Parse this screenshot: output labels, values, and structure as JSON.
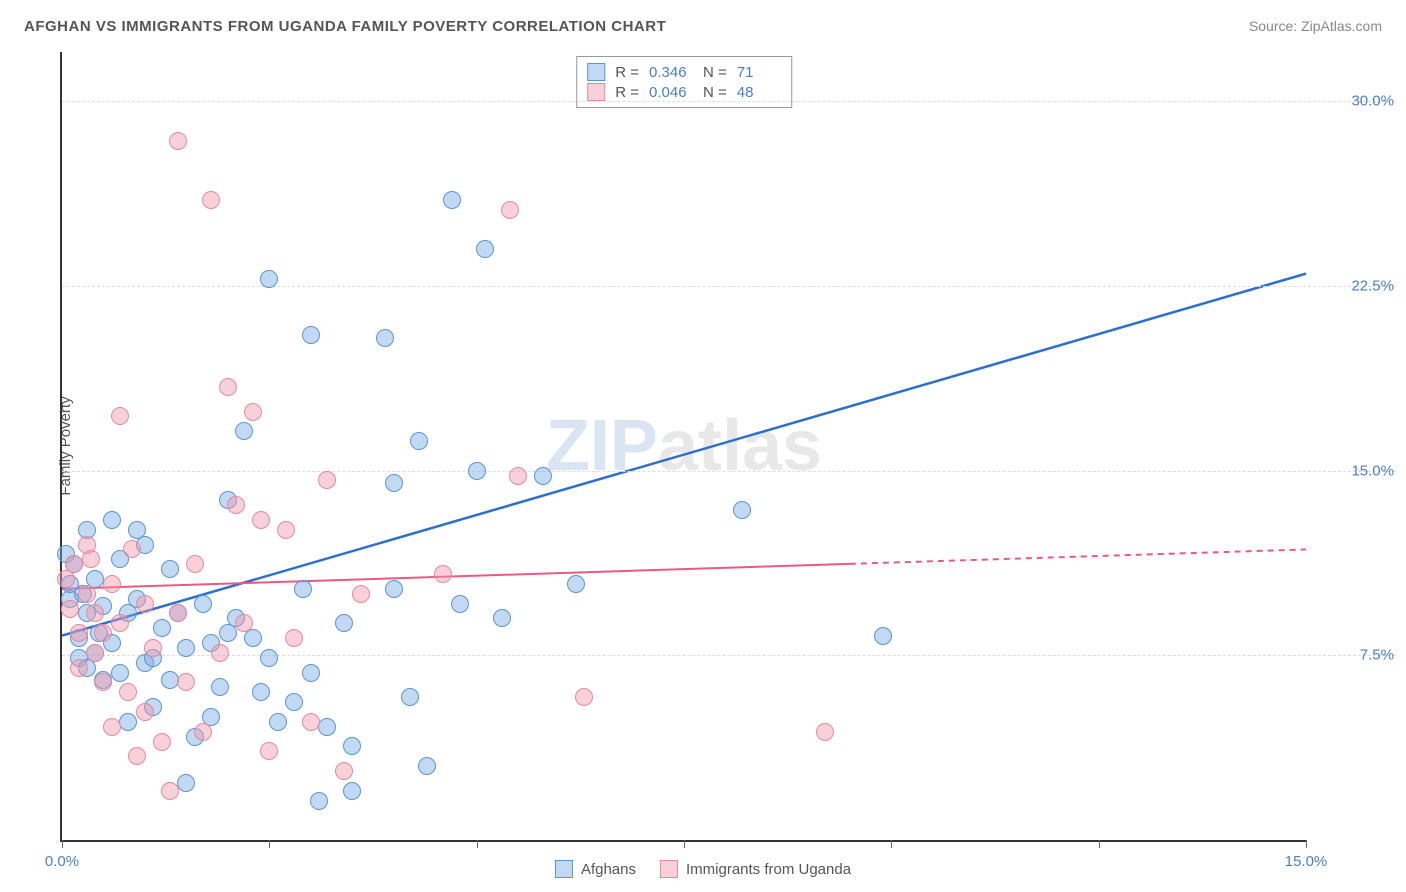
{
  "chart": {
    "type": "scatter",
    "title": "AFGHAN VS IMMIGRANTS FROM UGANDA FAMILY POVERTY CORRELATION CHART",
    "source_prefix": "Source: ",
    "source": "ZipAtlas.com",
    "ylabel": "Family Poverty",
    "watermark_zip": "ZIP",
    "watermark_atlas": "atlas",
    "background_color": "#ffffff",
    "grid_color": "#dddddd",
    "axis_color": "#333333",
    "xlim": [
      0,
      15
    ],
    "ylim": [
      0,
      32
    ],
    "xtick_positions": [
      0,
      2.5,
      5,
      7.5,
      10,
      12.5,
      15
    ],
    "xtick_labels": [
      "0.0%",
      "",
      "",
      "",
      "",
      "",
      "15.0%"
    ],
    "ytick_positions": [
      7.5,
      15.0,
      22.5,
      30.0
    ],
    "ytick_labels": [
      "7.5%",
      "15.0%",
      "22.5%",
      "30.0%"
    ],
    "series": [
      {
        "name": "Afghans",
        "label": "Afghans",
        "color_fill": "rgba(120, 170, 230, 0.45)",
        "color_stroke": "#5a95d6",
        "marker_radius": 9,
        "R": "0.346",
        "N": "71",
        "trend": {
          "x1": 0,
          "y1": 8.3,
          "x2": 15,
          "y2": 23.0,
          "solid_until_x": 15,
          "stroke": "#2d6fd1",
          "width": 2.5
        },
        "points": [
          [
            0.05,
            11.6
          ],
          [
            0.1,
            9.8
          ],
          [
            0.1,
            10.4
          ],
          [
            0.15,
            11.2
          ],
          [
            0.2,
            8.2
          ],
          [
            0.2,
            7.4
          ],
          [
            0.25,
            10.0
          ],
          [
            0.3,
            12.6
          ],
          [
            0.3,
            9.2
          ],
          [
            0.3,
            7.0
          ],
          [
            0.4,
            10.6
          ],
          [
            0.4,
            7.6
          ],
          [
            0.45,
            8.4
          ],
          [
            0.5,
            6.5
          ],
          [
            0.5,
            9.5
          ],
          [
            0.6,
            13.0
          ],
          [
            0.6,
            8.0
          ],
          [
            0.7,
            6.8
          ],
          [
            0.7,
            11.4
          ],
          [
            0.8,
            9.2
          ],
          [
            0.8,
            4.8
          ],
          [
            0.9,
            12.6
          ],
          [
            0.9,
            9.8
          ],
          [
            1.0,
            7.2
          ],
          [
            1.0,
            12.0
          ],
          [
            1.1,
            5.4
          ],
          [
            1.1,
            7.4
          ],
          [
            1.2,
            8.6
          ],
          [
            1.3,
            6.5
          ],
          [
            1.3,
            11.0
          ],
          [
            1.4,
            9.2
          ],
          [
            1.5,
            2.3
          ],
          [
            1.5,
            7.8
          ],
          [
            1.6,
            4.2
          ],
          [
            1.7,
            9.6
          ],
          [
            1.8,
            8.0
          ],
          [
            1.8,
            5.0
          ],
          [
            1.9,
            6.2
          ],
          [
            2.0,
            13.8
          ],
          [
            2.0,
            8.4
          ],
          [
            2.1,
            9.0
          ],
          [
            2.2,
            16.6
          ],
          [
            2.3,
            8.2
          ],
          [
            2.4,
            6.0
          ],
          [
            2.5,
            22.8
          ],
          [
            2.5,
            7.4
          ],
          [
            2.6,
            4.8
          ],
          [
            2.8,
            5.6
          ],
          [
            2.9,
            10.2
          ],
          [
            3.0,
            20.5
          ],
          [
            3.0,
            6.8
          ],
          [
            3.1,
            1.6
          ],
          [
            3.2,
            4.6
          ],
          [
            3.4,
            8.8
          ],
          [
            3.5,
            3.8
          ],
          [
            3.9,
            20.4
          ],
          [
            4.0,
            14.5
          ],
          [
            4.0,
            10.2
          ],
          [
            4.2,
            5.8
          ],
          [
            4.3,
            16.2
          ],
          [
            4.4,
            3.0
          ],
          [
            4.7,
            26.0
          ],
          [
            4.8,
            9.6
          ],
          [
            5.0,
            15.0
          ],
          [
            5.1,
            24.0
          ],
          [
            5.3,
            9.0
          ],
          [
            5.8,
            14.8
          ],
          [
            6.2,
            10.4
          ],
          [
            8.2,
            13.4
          ],
          [
            9.9,
            8.3
          ],
          [
            3.5,
            2.0
          ]
        ]
      },
      {
        "name": "Immigrants from Uganda",
        "label": "Immigrants from Uganda",
        "color_fill": "rgba(240, 150, 170, 0.45)",
        "color_stroke": "#e58aa0",
        "marker_radius": 9,
        "R": "0.046",
        "N": "48",
        "trend": {
          "x1": 0,
          "y1": 10.2,
          "x2": 15,
          "y2": 11.8,
          "solid_until_x": 9.5,
          "stroke": "#e85b81",
          "width": 2
        },
        "points": [
          [
            0.05,
            10.6
          ],
          [
            0.1,
            9.4
          ],
          [
            0.15,
            11.2
          ],
          [
            0.2,
            8.4
          ],
          [
            0.2,
            7.0
          ],
          [
            0.3,
            10.0
          ],
          [
            0.3,
            12.0
          ],
          [
            0.35,
            11.4
          ],
          [
            0.4,
            9.2
          ],
          [
            0.4,
            7.6
          ],
          [
            0.5,
            8.4
          ],
          [
            0.5,
            6.4
          ],
          [
            0.6,
            10.4
          ],
          [
            0.6,
            4.6
          ],
          [
            0.7,
            17.2
          ],
          [
            0.7,
            8.8
          ],
          [
            0.8,
            6.0
          ],
          [
            0.85,
            11.8
          ],
          [
            0.9,
            3.4
          ],
          [
            1.0,
            5.2
          ],
          [
            1.0,
            9.6
          ],
          [
            1.1,
            7.8
          ],
          [
            1.2,
            4.0
          ],
          [
            1.3,
            2.0
          ],
          [
            1.4,
            28.4
          ],
          [
            1.4,
            9.2
          ],
          [
            1.5,
            6.4
          ],
          [
            1.6,
            11.2
          ],
          [
            1.7,
            4.4
          ],
          [
            1.8,
            26.0
          ],
          [
            1.9,
            7.6
          ],
          [
            2.0,
            18.4
          ],
          [
            2.1,
            13.6
          ],
          [
            2.2,
            8.8
          ],
          [
            2.3,
            17.4
          ],
          [
            2.4,
            13.0
          ],
          [
            2.5,
            3.6
          ],
          [
            2.7,
            12.6
          ],
          [
            2.8,
            8.2
          ],
          [
            3.0,
            4.8
          ],
          [
            3.2,
            14.6
          ],
          [
            3.4,
            2.8
          ],
          [
            3.6,
            10.0
          ],
          [
            4.6,
            10.8
          ],
          [
            5.4,
            25.6
          ],
          [
            5.5,
            14.8
          ],
          [
            6.3,
            5.8
          ],
          [
            9.2,
            4.4
          ]
        ]
      }
    ],
    "legend_top": {
      "r_label": "R =",
      "n_label": "N ="
    }
  }
}
